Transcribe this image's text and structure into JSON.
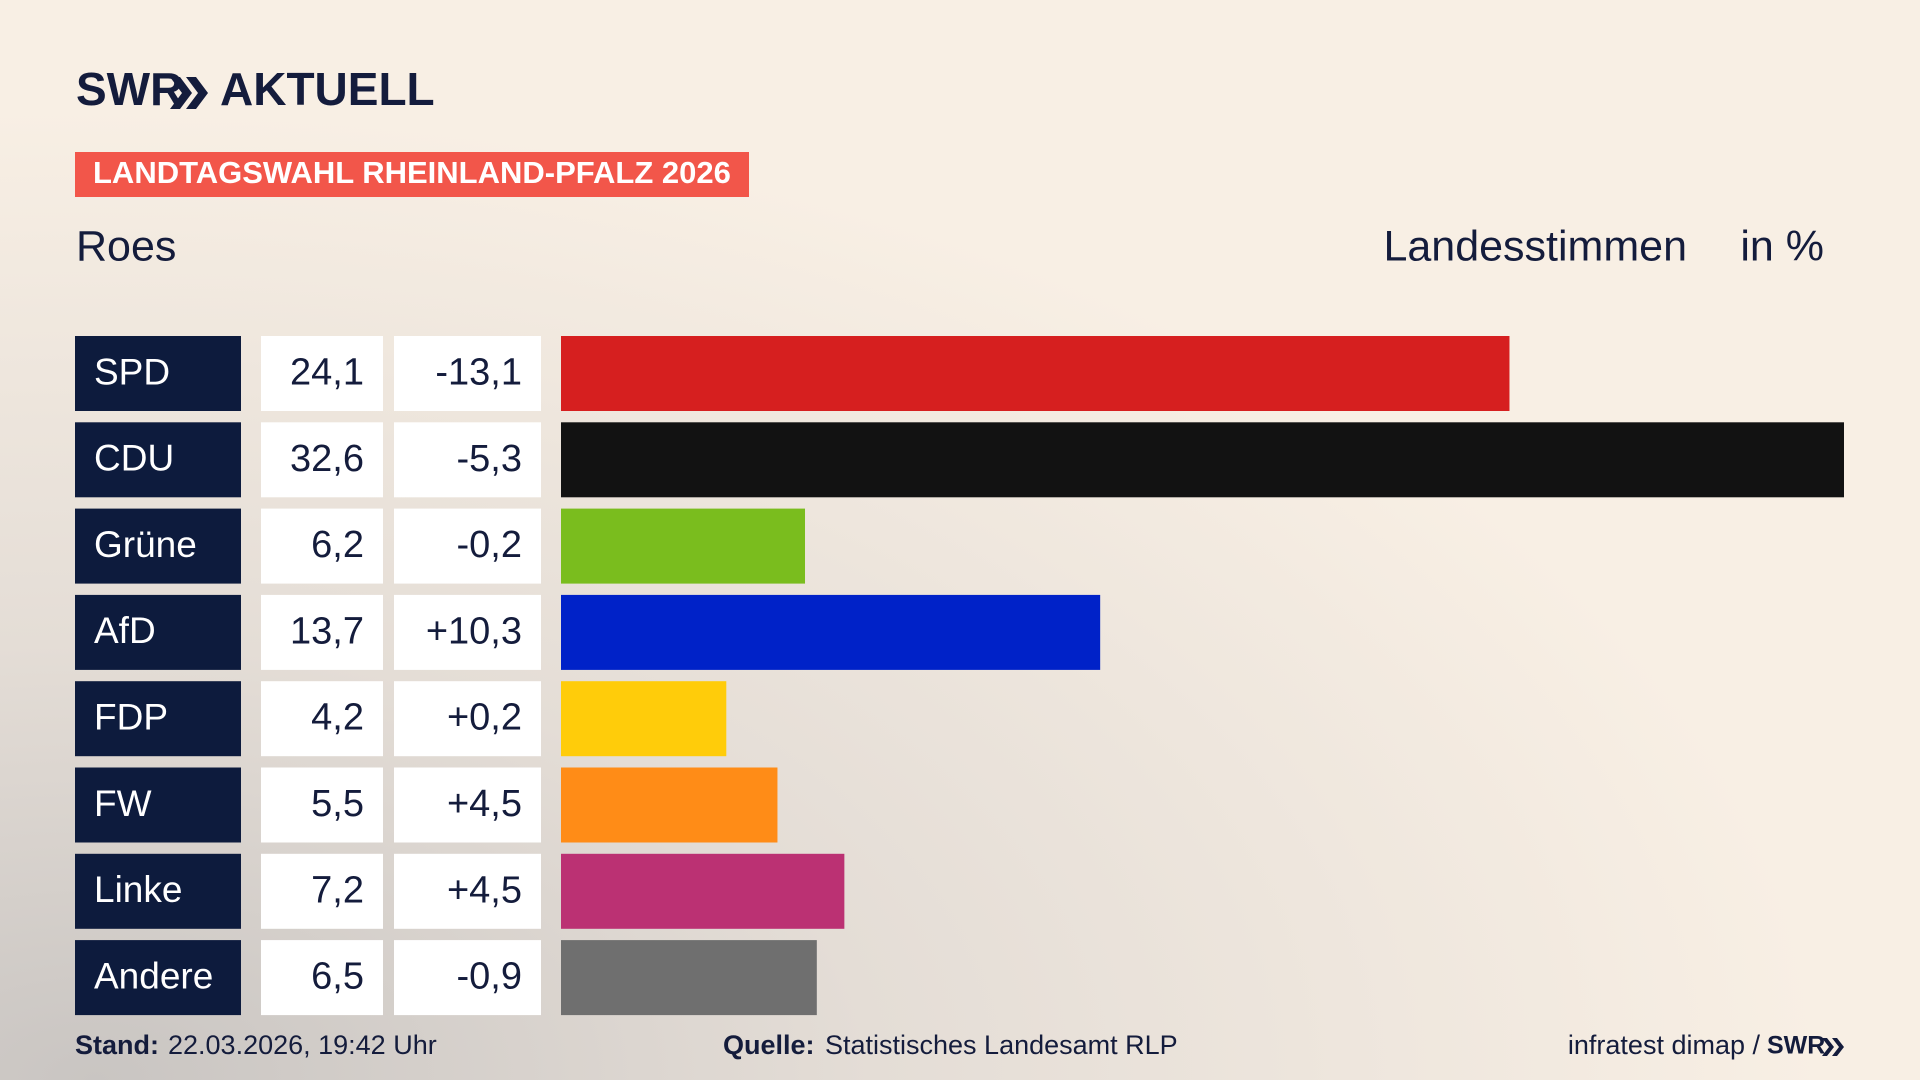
{
  "header": {
    "logo_left": "SWR",
    "logo_right": "AKTUELL",
    "banner": "LANDTAGSWAHL RHEINLAND-PFALZ 2026"
  },
  "chart_data": {
    "type": "bar",
    "orientation": "horizontal",
    "subtitle": "Roes",
    "title": "Landesstimmen",
    "unit": "in %",
    "categories": [
      "SPD",
      "CDU",
      "Grüne",
      "AfD",
      "FDP",
      "FW",
      "Linke",
      "Andere"
    ],
    "values": [
      24.1,
      32.6,
      6.2,
      13.7,
      4.2,
      5.5,
      7.2,
      6.5
    ],
    "value_labels": [
      "24,1",
      "32,6",
      "6,2",
      "13,7",
      "4,2",
      "5,5",
      "7,2",
      "6,5"
    ],
    "changes": [
      -13.1,
      -5.3,
      -0.2,
      10.3,
      0.2,
      4.5,
      4.5,
      -0.9
    ],
    "change_labels": [
      "-13,1",
      "-5,3",
      "-0,2",
      "+10,3",
      "+0,2",
      "+4,5",
      "+4,5",
      "-0,9"
    ],
    "colors": [
      "#d61f1f",
      "#121212",
      "#7abd1e",
      "#0022c8",
      "#ffcc0a",
      "#ff8c17",
      "#bb3173",
      "#6f6f6f"
    ]
  },
  "footer": {
    "stand_label": "Stand:",
    "stand": "22.03.2026, 19:42 Uhr",
    "source_label": "Quelle:",
    "source": "Statistisches Landesamt RLP",
    "credit": "infratest dimap /",
    "credit_logo": "SWR"
  }
}
